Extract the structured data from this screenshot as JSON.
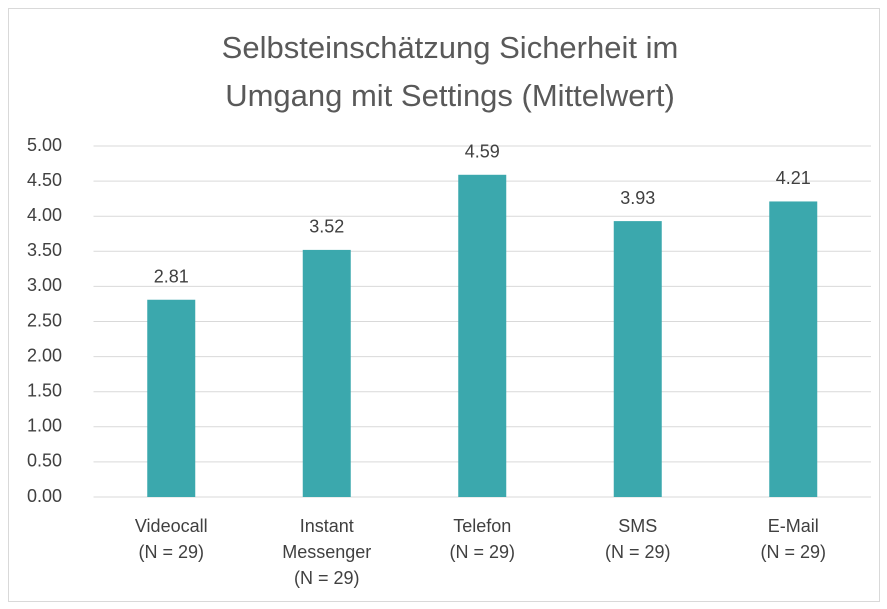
{
  "chart_data": {
    "type": "bar",
    "title": [
      "Selbsteinschätzung Sicherheit im",
      "Umgang mit Settings (Mittelwert)"
    ],
    "categories": [
      [
        "Videocall",
        "(N = 29)"
      ],
      [
        "Instant",
        "Messenger",
        "(N = 29)"
      ],
      [
        "Telefon",
        "(N = 29)"
      ],
      [
        "SMS",
        "(N = 29)"
      ],
      [
        "E-Mail",
        "(N = 29)"
      ]
    ],
    "values": [
      2.81,
      3.52,
      4.59,
      3.93,
      4.21
    ],
    "color": "#3ba8ad",
    "ylim": [
      0,
      5
    ],
    "yticks": [
      {
        "value": 0,
        "label": "0.00"
      },
      {
        "value": 0.5,
        "label": "0.50"
      },
      {
        "value": 1,
        "label": "1.00"
      },
      {
        "value": 1.5,
        "label": "1.50"
      },
      {
        "value": 2,
        "label": "2.00"
      },
      {
        "value": 2.5,
        "label": "2.50"
      },
      {
        "value": 3,
        "label": "3.00"
      },
      {
        "value": 3.5,
        "label": "3.50"
      },
      {
        "value": 4,
        "label": "4.00"
      },
      {
        "value": 4.5,
        "label": "4.50"
      },
      {
        "value": 5,
        "label": "5.00"
      }
    ],
    "grid": true
  }
}
